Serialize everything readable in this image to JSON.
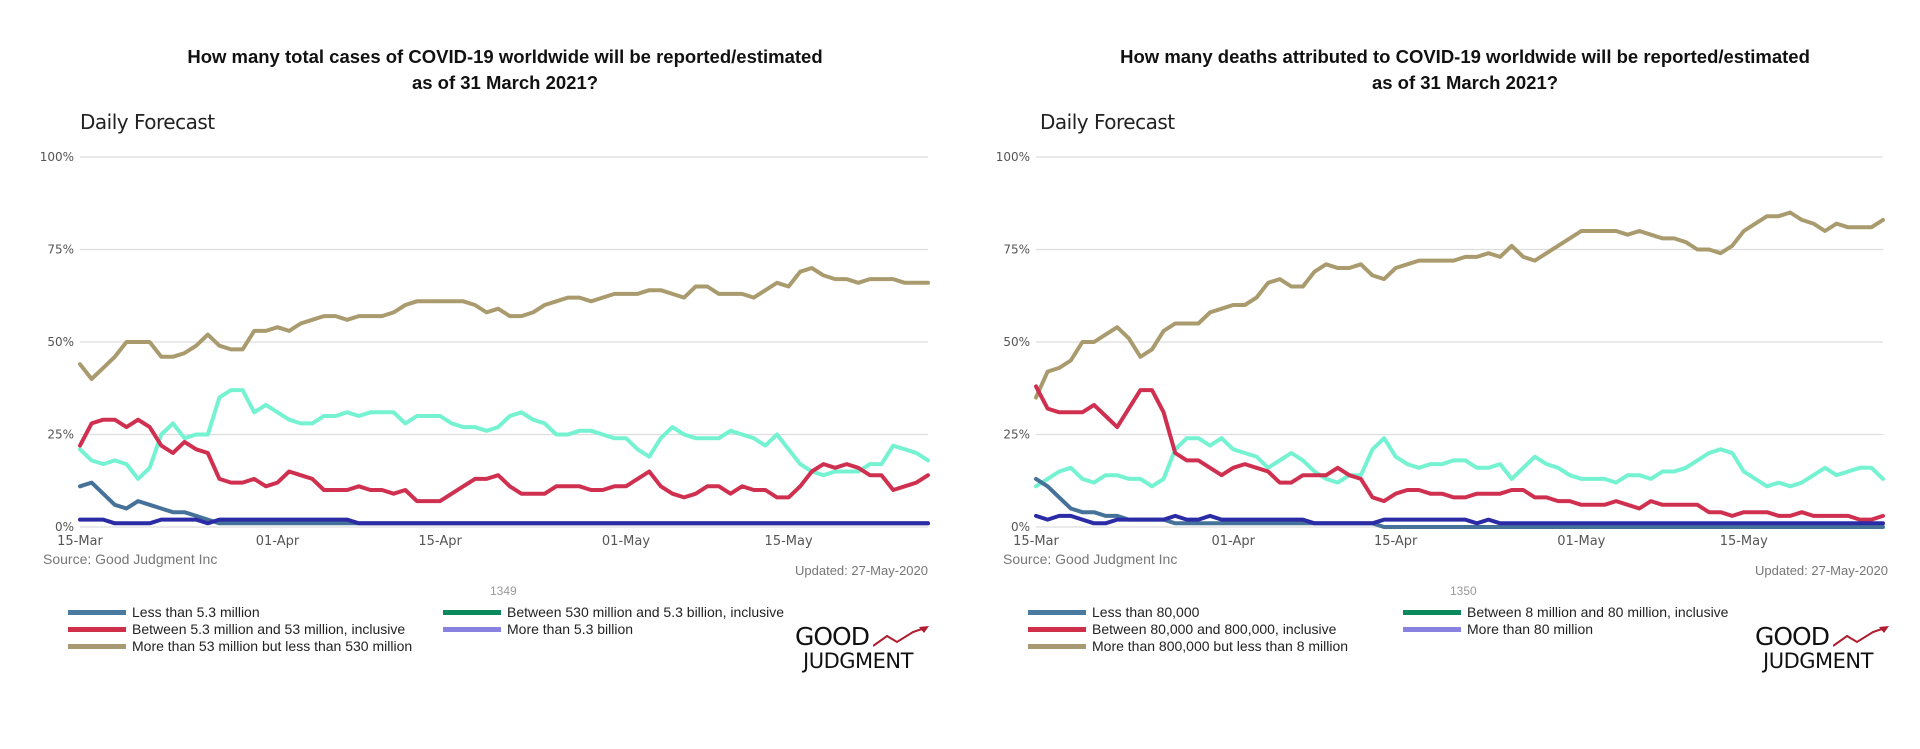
{
  "colors": {
    "less": "#46729a",
    "mid_low": "#d03050",
    "mid": "#a99b6e",
    "mid_high": "#74f2d2",
    "high": "#2b2ba6",
    "legend_less": "#4a7aa0",
    "legend_mid_low": "#cf2f48",
    "legend_mid": "#a89a72",
    "legend_mid_high": "#0a8a5c",
    "legend_high": "#8a82e0",
    "grid": "#dddddd",
    "logo_arrow": "#b01c2e"
  },
  "charts": [
    {
      "title_line1": "How many total cases of COVID-19 worldwide will be reported/estimated",
      "title_line2": "as of 31 March 2021?",
      "subtitle": "Daily Forecast",
      "source": "Source: Good Judgment Inc",
      "updated": "Updated: 27-May-2020",
      "question_id": "1349",
      "logo_top": "GOOD",
      "logo_bottom": "JUDGMENT",
      "legend": [
        {
          "label": "Less than 5.3 million",
          "color_key": "legend_less"
        },
        {
          "label": "Between 5.3 million and 53 million, inclusive",
          "color_key": "legend_mid_low"
        },
        {
          "label": "More than 53 million but less than 530 million",
          "color_key": "legend_mid"
        },
        {
          "label": "Between 530 million and 5.3 billion, inclusive",
          "color_key": "legend_mid_high"
        },
        {
          "label": "More than 5.3 billion",
          "color_key": "legend_high"
        }
      ]
    },
    {
      "title_line1": "How many deaths attributed to COVID-19 worldwide will be reported/estimated",
      "title_line2": "as of 31 March 2021?",
      "subtitle": "Daily Forecast",
      "source": "Source: Good Judgment Inc",
      "updated": "Updated: 27-May-2020",
      "question_id": "1350",
      "logo_top": "GOOD",
      "logo_bottom": "JUDGMENT",
      "legend": [
        {
          "label": "Less than 80,000",
          "color_key": "legend_less"
        },
        {
          "label": "Between 80,000 and 800,000, inclusive",
          "color_key": "legend_mid_low"
        },
        {
          "label": "More than 800,000 but less than 8 million",
          "color_key": "legend_mid"
        },
        {
          "label": "Between 8 million and 80 million, inclusive",
          "color_key": "legend_mid_high"
        },
        {
          "label": "More than 80 million",
          "color_key": "legend_high"
        }
      ]
    }
  ],
  "chart_data": [
    {
      "type": "line",
      "title": "How many total cases of COVID-19 worldwide will be reported/estimated as of 31 March 2021?",
      "x_start": "2020-03-15",
      "x_end": "2020-05-27",
      "x_step": "1 day",
      "x_ticks": [
        "15-Mar",
        "01-Apr",
        "15-Apr",
        "01-May",
        "15-May"
      ],
      "x_tick_days": [
        0,
        17,
        31,
        47,
        61
      ],
      "y_ticks": [
        "0%",
        "25%",
        "50%",
        "75%",
        "100%"
      ],
      "ylim": [
        0,
        100
      ],
      "grid": true,
      "legend_position": "bottom",
      "series": [
        {
          "name": "Less than 5.3 million",
          "color_key": "less",
          "values": [
            11,
            12,
            9,
            6,
            5,
            7,
            6,
            5,
            4,
            4,
            3,
            2,
            1,
            1,
            1,
            1,
            1,
            1,
            1,
            1,
            1,
            1,
            1,
            1,
            1,
            1,
            1,
            1,
            1,
            1,
            1,
            1,
            1,
            1,
            1,
            1,
            1,
            1,
            1,
            1,
            1,
            1,
            1,
            1,
            1,
            1,
            1,
            1,
            1,
            1,
            1,
            1,
            1,
            1,
            1,
            1,
            1,
            1,
            1,
            1,
            1,
            1,
            1,
            1,
            1,
            1,
            1,
            1,
            1,
            1,
            1,
            1,
            1,
            1
          ]
        },
        {
          "name": "Between 5.3 million and 53 million, inclusive",
          "color_key": "mid_low",
          "values": [
            22,
            28,
            29,
            29,
            27,
            29,
            27,
            22,
            20,
            23,
            21,
            20,
            13,
            12,
            12,
            13,
            11,
            12,
            15,
            14,
            13,
            10,
            10,
            10,
            11,
            10,
            10,
            9,
            10,
            7,
            7,
            7,
            9,
            11,
            13,
            13,
            14,
            11,
            9,
            9,
            9,
            11,
            11,
            11,
            10,
            10,
            11,
            11,
            13,
            15,
            11,
            9,
            8,
            9,
            11,
            11,
            9,
            11,
            10,
            10,
            8,
            8,
            11,
            15,
            17,
            16,
            17,
            16,
            14,
            14,
            10,
            11,
            12,
            14
          ]
        },
        {
          "name": "More than 53 million but less than 530 million",
          "color_key": "mid",
          "values": [
            44,
            40,
            43,
            46,
            50,
            50,
            50,
            46,
            46,
            47,
            49,
            52,
            49,
            48,
            48,
            53,
            53,
            54,
            53,
            55,
            56,
            57,
            57,
            56,
            57,
            57,
            57,
            58,
            60,
            61,
            61,
            61,
            61,
            61,
            60,
            58,
            59,
            57,
            57,
            58,
            60,
            61,
            62,
            62,
            61,
            62,
            63,
            63,
            63,
            64,
            64,
            63,
            62,
            65,
            65,
            63,
            63,
            63,
            62,
            64,
            66,
            65,
            69,
            70,
            68,
            67,
            67,
            66,
            67,
            67,
            67,
            66,
            66,
            66
          ]
        },
        {
          "name": "Between 530 million and 5.3 billion, inclusive",
          "color_key": "mid_high",
          "values": [
            21,
            18,
            17,
            18,
            17,
            13,
            16,
            25,
            28,
            24,
            25,
            25,
            35,
            37,
            37,
            31,
            33,
            31,
            29,
            28,
            28,
            30,
            30,
            31,
            30,
            31,
            31,
            31,
            28,
            30,
            30,
            30,
            28,
            27,
            27,
            26,
            27,
            30,
            31,
            29,
            28,
            25,
            25,
            26,
            26,
            25,
            24,
            24,
            21,
            19,
            24,
            27,
            25,
            24,
            24,
            24,
            26,
            25,
            24,
            22,
            25,
            21,
            17,
            15,
            14,
            15,
            15,
            15,
            17,
            17,
            22,
            21,
            20,
            18
          ]
        },
        {
          "name": "More than 5.3 billion",
          "color_key": "high",
          "values": [
            2,
            2,
            2,
            1,
            1,
            1,
            1,
            2,
            2,
            2,
            2,
            1,
            2,
            2,
            2,
            2,
            2,
            2,
            2,
            2,
            2,
            2,
            2,
            2,
            1,
            1,
            1,
            1,
            1,
            1,
            1,
            1,
            1,
            1,
            1,
            1,
            1,
            1,
            1,
            1,
            1,
            1,
            1,
            1,
            1,
            1,
            1,
            1,
            1,
            1,
            1,
            1,
            1,
            1,
            1,
            1,
            1,
            1,
            1,
            1,
            1,
            1,
            1,
            1,
            1,
            1,
            1,
            1,
            1,
            1,
            1,
            1,
            1,
            1
          ]
        }
      ]
    },
    {
      "type": "line",
      "title": "How many deaths attributed to COVID-19 worldwide will be reported/estimated as of 31 March 2021?",
      "x_start": "2020-03-15",
      "x_end": "2020-05-27",
      "x_step": "1 day",
      "x_ticks": [
        "15-Mar",
        "01-Apr",
        "15-Apr",
        "01-May",
        "15-May"
      ],
      "x_tick_days": [
        0,
        17,
        31,
        47,
        61
      ],
      "y_ticks": [
        "0%",
        "25%",
        "50%",
        "75%",
        "100%"
      ],
      "ylim": [
        0,
        100
      ],
      "grid": true,
      "legend_position": "bottom",
      "series": [
        {
          "name": "Less than 80,000",
          "color_key": "less",
          "values": [
            13,
            11,
            8,
            5,
            4,
            4,
            3,
            3,
            2,
            2,
            2,
            2,
            1,
            1,
            1,
            1,
            1,
            1,
            1,
            1,
            1,
            1,
            1,
            1,
            1,
            1,
            1,
            1,
            1,
            1,
            0,
            0,
            0,
            0,
            0,
            0,
            0,
            0,
            0,
            0,
            0,
            0,
            0,
            0,
            0,
            0,
            0,
            0,
            0,
            0,
            0,
            0,
            0,
            0,
            0,
            0,
            0,
            0,
            0,
            0,
            0,
            0,
            0,
            0,
            0,
            0,
            0,
            0,
            0,
            0,
            0,
            0,
            0,
            0
          ]
        },
        {
          "name": "Between 80,000 and 800,000, inclusive",
          "color_key": "mid_low",
          "values": [
            38,
            32,
            31,
            31,
            31,
            33,
            30,
            27,
            32,
            37,
            37,
            31,
            20,
            18,
            18,
            16,
            14,
            16,
            17,
            16,
            15,
            12,
            12,
            14,
            14,
            14,
            16,
            14,
            13,
            8,
            7,
            9,
            10,
            10,
            9,
            9,
            8,
            8,
            9,
            9,
            9,
            10,
            10,
            8,
            8,
            7,
            7,
            6,
            6,
            6,
            7,
            6,
            5,
            7,
            6,
            6,
            6,
            6,
            4,
            4,
            3,
            4,
            4,
            4,
            3,
            3,
            4,
            3,
            3,
            3,
            3,
            2,
            2,
            3
          ]
        },
        {
          "name": "More than 800,000 but less than 8 million",
          "color_key": "mid",
          "values": [
            35,
            42,
            43,
            45,
            50,
            50,
            52,
            54,
            51,
            46,
            48,
            53,
            55,
            55,
            55,
            58,
            59,
            60,
            60,
            62,
            66,
            67,
            65,
            65,
            69,
            71,
            70,
            70,
            71,
            68,
            67,
            70,
            71,
            72,
            72,
            72,
            72,
            73,
            73,
            74,
            73,
            76,
            73,
            72,
            74,
            76,
            78,
            80,
            80,
            80,
            80,
            79,
            80,
            79,
            78,
            78,
            77,
            75,
            75,
            74,
            76,
            80,
            82,
            84,
            84,
            85,
            83,
            82,
            80,
            82,
            81,
            81,
            81,
            83
          ]
        },
        {
          "name": "Between 8 million and 80 million, inclusive",
          "color_key": "mid_high",
          "values": [
            11,
            13,
            15,
            16,
            13,
            12,
            14,
            14,
            13,
            13,
            11,
            13,
            21,
            24,
            24,
            22,
            24,
            21,
            20,
            19,
            16,
            18,
            20,
            18,
            15,
            13,
            12,
            14,
            14,
            21,
            24,
            19,
            17,
            16,
            17,
            17,
            18,
            18,
            16,
            16,
            17,
            13,
            16,
            19,
            17,
            16,
            14,
            13,
            13,
            13,
            12,
            14,
            14,
            13,
            15,
            15,
            16,
            18,
            20,
            21,
            20,
            15,
            13,
            11,
            12,
            11,
            12,
            14,
            16,
            14,
            15,
            16,
            16,
            13
          ]
        },
        {
          "name": "More than 80 million",
          "color_key": "high",
          "values": [
            3,
            2,
            3,
            3,
            2,
            1,
            1,
            2,
            2,
            2,
            2,
            2,
            3,
            2,
            2,
            3,
            2,
            2,
            2,
            2,
            2,
            2,
            2,
            2,
            1,
            1,
            1,
            1,
            1,
            1,
            2,
            2,
            2,
            2,
            2,
            2,
            2,
            2,
            1,
            2,
            1,
            1,
            1,
            1,
            1,
            1,
            1,
            1,
            1,
            1,
            1,
            1,
            1,
            1,
            1,
            1,
            1,
            1,
            1,
            1,
            1,
            1,
            1,
            1,
            1,
            1,
            1,
            1,
            1,
            1,
            1,
            1,
            1,
            1
          ]
        }
      ]
    }
  ]
}
